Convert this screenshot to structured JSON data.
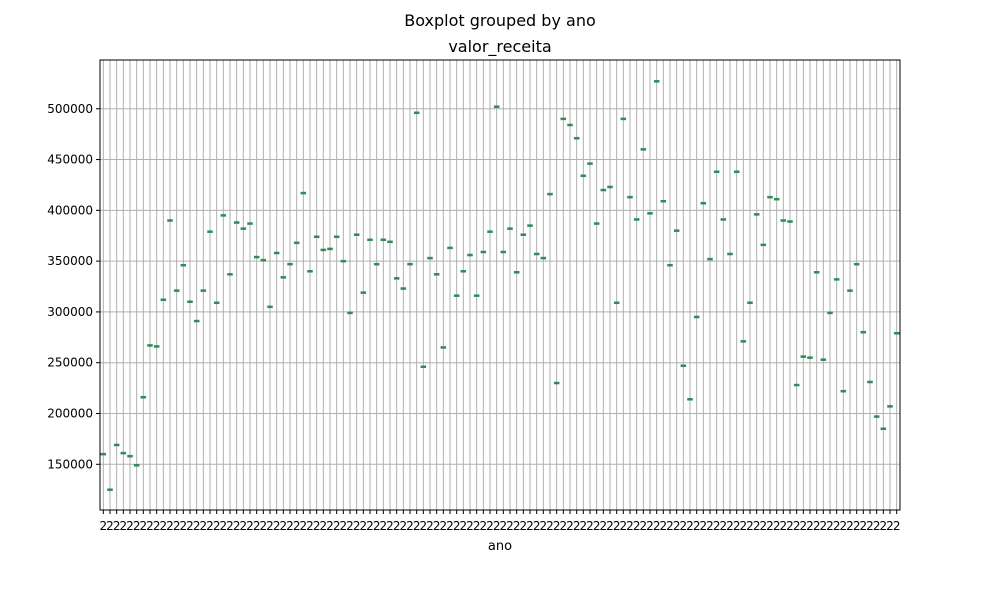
{
  "chart_data": {
    "type": "boxplot",
    "suptitle": "Boxplot grouped by ano",
    "title": "valor_receita",
    "xlabel": "ano",
    "ylabel": "",
    "ylim": [
      105000,
      548000
    ],
    "y_ticks": [
      150000,
      200000,
      250000,
      300000,
      350000,
      400000,
      450000,
      500000
    ],
    "grid": true,
    "colors": {
      "box": "#2e8b57",
      "grid": "#b0b0b0",
      "axis": "#000000"
    },
    "x_tick_labels_visible": "2",
    "values": [
      160000,
      125000,
      169000,
      161000,
      158000,
      149000,
      216000,
      267000,
      266000,
      312000,
      390000,
      321000,
      346000,
      310000,
      291000,
      321000,
      379000,
      309000,
      395000,
      337000,
      388000,
      382000,
      387000,
      354000,
      351000,
      305000,
      358000,
      334000,
      347000,
      368000,
      417000,
      340000,
      374000,
      361000,
      362000,
      374000,
      350000,
      299000,
      376000,
      319000,
      371000,
      347000,
      371000,
      369000,
      333000,
      323000,
      347000,
      496000,
      246000,
      353000,
      337000,
      265000,
      363000,
      316000,
      340000,
      356000,
      316000,
      359000,
      379000,
      502000,
      359000,
      382000,
      339000,
      376000,
      385000,
      357000,
      353000,
      416000,
      230000,
      490000,
      484000,
      471000,
      434000,
      446000,
      387000,
      420000,
      423000,
      309000,
      490000,
      413000,
      391000,
      460000,
      397000,
      527000,
      409000,
      346000,
      380000,
      247000,
      214000,
      295000,
      407000,
      352000,
      438000,
      391000,
      357000,
      438000,
      271000,
      309000,
      396000,
      366000,
      413000,
      411000,
      390000,
      389000,
      228000,
      256000,
      255000,
      339000,
      253000,
      299000,
      332000,
      222000,
      321000,
      347000,
      280000,
      231000,
      197000,
      185000,
      207000,
      279000
    ]
  }
}
